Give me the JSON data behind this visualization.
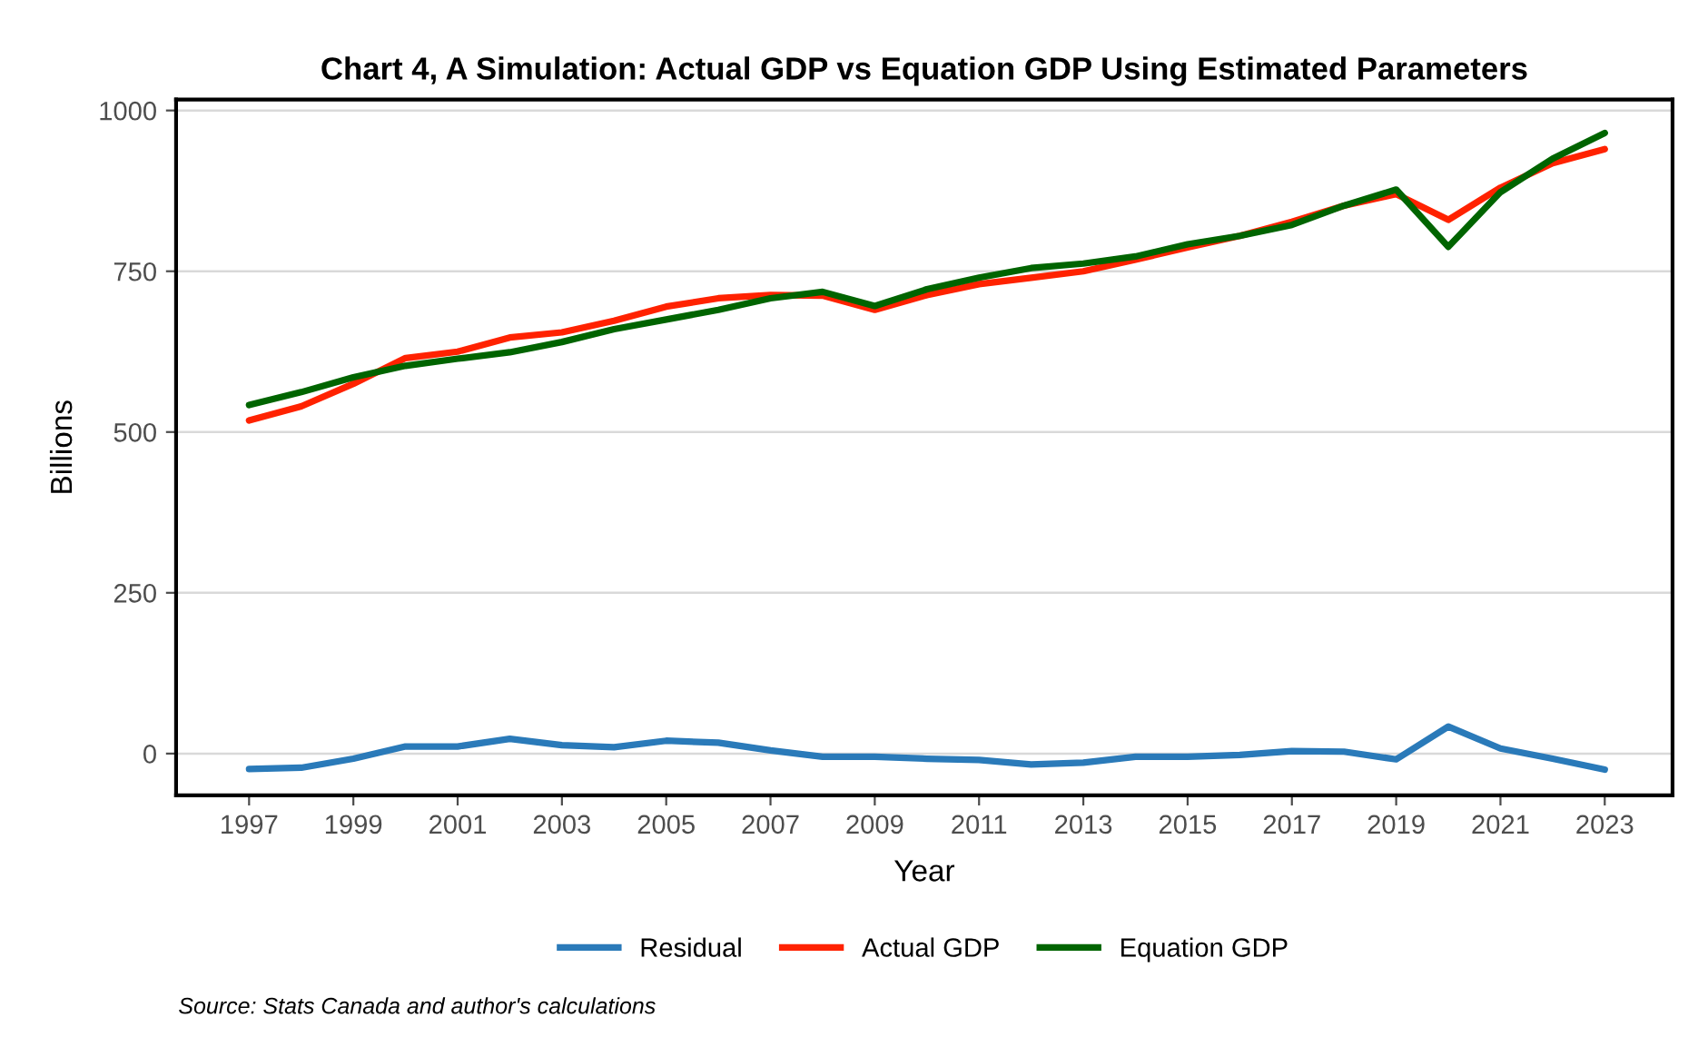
{
  "chart_data": {
    "type": "line",
    "title": "Chart 4, A Simulation: Actual GDP vs Equation GDP Using Estimated Parameters",
    "xlabel": "Year",
    "ylabel": "Billions",
    "x": [
      1997,
      1998,
      1999,
      2000,
      2001,
      2002,
      2003,
      2004,
      2005,
      2006,
      2007,
      2008,
      2009,
      2010,
      2011,
      2012,
      2013,
      2014,
      2015,
      2016,
      2017,
      2018,
      2019,
      2020,
      2021,
      2022,
      2023
    ],
    "series": [
      {
        "name": "Residual",
        "color": "#2a7ab9",
        "values": [
          -24,
          -22,
          -8,
          11,
          11,
          23,
          13,
          10,
          20,
          17,
          5,
          -5,
          -5,
          -8,
          -10,
          -17,
          -14,
          -5,
          -5,
          -2,
          4,
          3,
          -9,
          42,
          8,
          -8,
          -25
        ]
      },
      {
        "name": "Actual GDP",
        "color": "#ff2200",
        "values": [
          518,
          540,
          575,
          615,
          625,
          647,
          655,
          673,
          695,
          708,
          713,
          712,
          690,
          713,
          730,
          740,
          750,
          768,
          787,
          805,
          827,
          852,
          870,
          830,
          880,
          918,
          940
        ]
      },
      {
        "name": "Equation GDP",
        "color": "#006400",
        "values": [
          542,
          562,
          585,
          603,
          614,
          624,
          640,
          660,
          675,
          690,
          708,
          718,
          696,
          722,
          740,
          755,
          762,
          773,
          792,
          805,
          822,
          852,
          877,
          788,
          873,
          925,
          965
        ]
      }
    ],
    "xlim": [
      1995.6,
      2024.3
    ],
    "xticks": [
      1997,
      1999,
      2001,
      2003,
      2005,
      2007,
      2009,
      2011,
      2013,
      2015,
      2017,
      2019,
      2021,
      2023
    ],
    "ylim": [
      -65,
      1017
    ],
    "yticks": [
      0,
      250,
      500,
      750,
      1000
    ],
    "grid": "y",
    "legend": "bottom",
    "marker": "none",
    "line_style": "solid",
    "annotations": [
      "Source: Stats Canada and author's calculations"
    ]
  }
}
